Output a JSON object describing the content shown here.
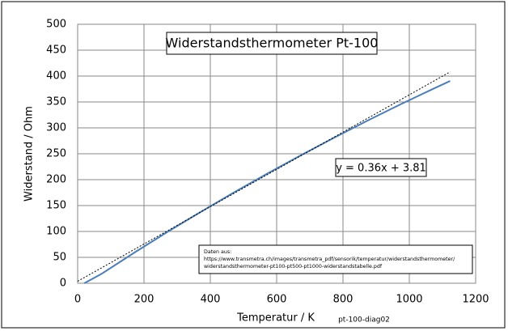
{
  "chart_data": {
    "type": "line",
    "title": "Widerstandsthermometer Pt-100",
    "x_label": "Temperatur / K",
    "y_label": "Widerstand / Ohm",
    "footnote": "pt-100-diag02",
    "source": [
      "Daten aus:",
      "https://www.transmetra.ch/images/transmetra_pdf/sensorik/temperatur/widerstandsthermometer/",
      "widerstandsthermometer-pt100-pt500-pt1000-widerstandstabelle.pdf"
    ],
    "x": [
      20,
      73,
      173,
      273,
      373,
      473,
      573,
      673,
      773,
      873,
      973,
      1073,
      1123
    ],
    "series": [
      {
        "name": "Pt-100",
        "color": "#4a7ebb",
        "values": [
          0,
          18.5,
          60,
          100,
          138.5,
          175.9,
          212.1,
          247.1,
          280.9,
          313.7,
          345.3,
          375.7,
          390.5
        ]
      }
    ],
    "trendline": {
      "slope": 0.36,
      "intercept": 3.81,
      "label": "y = 0.36x + 3.81"
    },
    "xlim": [
      0,
      1200
    ],
    "xticks": [
      0,
      200,
      400,
      600,
      800,
      1000,
      1200
    ],
    "ylim": [
      0,
      500
    ],
    "yticks": [
      0,
      50,
      100,
      150,
      200,
      250,
      300,
      350,
      400,
      450,
      500
    ],
    "grid": true
  }
}
